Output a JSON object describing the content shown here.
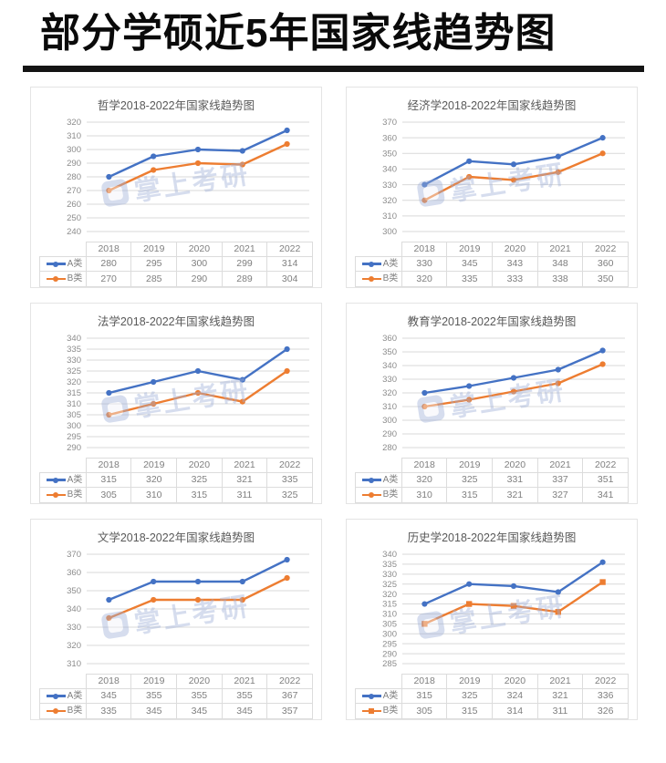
{
  "page": {
    "title": "部分学硕近5年国家线趋势图"
  },
  "watermark": {
    "text": "掌上考研"
  },
  "colors": {
    "series_a": "#4472C4",
    "series_b": "#ED7D31",
    "grid": "#D9D9D9",
    "axis_text": "#8C8C8C",
    "table_text": "#7F7F7F",
    "table_border": "#DCDCDC",
    "panel_title": "#595959"
  },
  "chart_data": [
    {
      "type": "line",
      "title": "哲学2018-2022年国家线趋势图",
      "categories": [
        "2018",
        "2019",
        "2020",
        "2021",
        "2022"
      ],
      "series": [
        {
          "name": "A类",
          "color": "#4472C4",
          "marker": "circle",
          "values": [
            280,
            295,
            300,
            299,
            314
          ]
        },
        {
          "name": "B类",
          "color": "#ED7D31",
          "marker": "circle",
          "values": [
            270,
            285,
            290,
            289,
            304
          ]
        }
      ],
      "ylim": [
        240,
        320
      ],
      "ystep": 10,
      "grid": true,
      "legend_position": "table-left"
    },
    {
      "type": "line",
      "title": "经济学2018-2022年国家线趋势图",
      "categories": [
        "2018",
        "2019",
        "2020",
        "2021",
        "2022"
      ],
      "series": [
        {
          "name": "A类",
          "color": "#4472C4",
          "marker": "circle",
          "values": [
            330,
            345,
            343,
            348,
            360
          ]
        },
        {
          "name": "B类",
          "color": "#ED7D31",
          "marker": "circle",
          "values": [
            320,
            335,
            333,
            338,
            350
          ]
        }
      ],
      "ylim": [
        300,
        370
      ],
      "ystep": 10,
      "grid": true,
      "legend_position": "table-left"
    },
    {
      "type": "line",
      "title": "法学2018-2022年国家线趋势图",
      "categories": [
        "2018",
        "2019",
        "2020",
        "2021",
        "2022"
      ],
      "series": [
        {
          "name": "A类",
          "color": "#4472C4",
          "marker": "circle",
          "values": [
            315,
            320,
            325,
            321,
            335
          ]
        },
        {
          "name": "B类",
          "color": "#ED7D31",
          "marker": "circle",
          "values": [
            305,
            310,
            315,
            311,
            325
          ]
        }
      ],
      "ylim": [
        290,
        340
      ],
      "ystep": 5,
      "grid": true,
      "legend_position": "table-left"
    },
    {
      "type": "line",
      "title": "教育学2018-2022年国家线趋势图",
      "categories": [
        "2018",
        "2019",
        "2020",
        "2021",
        "2022"
      ],
      "series": [
        {
          "name": "A类",
          "color": "#4472C4",
          "marker": "circle",
          "values": [
            320,
            325,
            331,
            337,
            351
          ]
        },
        {
          "name": "B类",
          "color": "#ED7D31",
          "marker": "circle",
          "values": [
            310,
            315,
            321,
            327,
            341
          ]
        }
      ],
      "ylim": [
        280,
        360
      ],
      "ystep": 10,
      "grid": true,
      "legend_position": "table-left"
    },
    {
      "type": "line",
      "title": "文学2018-2022年国家线趋势图",
      "categories": [
        "2018",
        "2019",
        "2020",
        "2021",
        "2022"
      ],
      "series": [
        {
          "name": "A类",
          "color": "#4472C4",
          "marker": "circle",
          "values": [
            345,
            355,
            355,
            355,
            367
          ]
        },
        {
          "name": "B类",
          "color": "#ED7D31",
          "marker": "circle",
          "values": [
            335,
            345,
            345,
            345,
            357
          ]
        }
      ],
      "ylim": [
        310,
        370
      ],
      "ystep": 10,
      "grid": true,
      "legend_position": "table-left"
    },
    {
      "type": "line",
      "title": "历史学2018-2022年国家线趋势图",
      "categories": [
        "2018",
        "2019",
        "2020",
        "2021",
        "2022"
      ],
      "series": [
        {
          "name": "A类",
          "color": "#4472C4",
          "marker": "circle",
          "values": [
            315,
            325,
            324,
            321,
            336
          ]
        },
        {
          "name": "B类",
          "color": "#ED7D31",
          "marker": "square",
          "values": [
            305,
            315,
            314,
            311,
            326
          ]
        }
      ],
      "ylim": [
        285,
        340
      ],
      "ystep": 5,
      "grid": true,
      "legend_position": "table-left"
    }
  ]
}
